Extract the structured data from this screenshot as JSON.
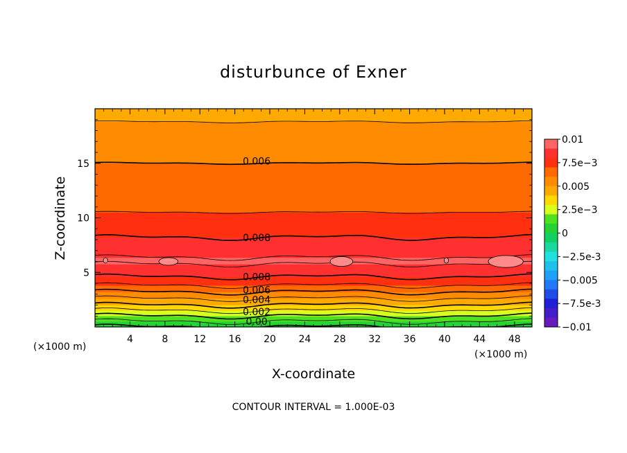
{
  "chart_data": {
    "type": "heatmap",
    "title": "disturbunce of Exner",
    "xlabel": "X-coordinate",
    "ylabel": "Z-coordinate",
    "x_unit_left": "(×1000 m)",
    "x_unit_right": "(×1000 m)",
    "footer": "CONTOUR INTERVAL = 1.000E-03",
    "xlim": [
      0,
      50
    ],
    "ylim": [
      0,
      20
    ],
    "x_ticks": [
      4,
      8,
      12,
      16,
      20,
      24,
      28,
      32,
      36,
      40,
      44,
      48
    ],
    "y_ticks": [
      5,
      10,
      15
    ],
    "contour_interval": 0.001,
    "color_range": [
      -0.01,
      0.01
    ],
    "colorbar": {
      "labels": [
        "0.01",
        "7.5e-3",
        "0.005",
        "2.5e-3",
        "0",
        "-2.5e-3",
        "-0.005",
        "-7.5e-3",
        "-0.01"
      ],
      "values": [
        0.01,
        0.0075,
        0.005,
        0.0025,
        0,
        -0.0025,
        -0.005,
        -0.0075,
        -0.01
      ]
    },
    "contour_labels": [
      {
        "text": "0.006",
        "x": 18.5,
        "y": 15.2
      },
      {
        "text": "0.008",
        "x": 18.5,
        "y": 8.2
      },
      {
        "text": "0.008",
        "x": 18.5,
        "y": 4.6
      },
      {
        "text": "0.006",
        "x": 18.5,
        "y": 3.4
      },
      {
        "text": "0.004",
        "x": 18.5,
        "y": 2.5
      },
      {
        "text": "0.002",
        "x": 18.5,
        "y": 1.4
      },
      {
        "text": "0.00",
        "x": 18.5,
        "y": 0.5
      }
    ],
    "profile": [
      {
        "z": 0,
        "v": 0.0
      },
      {
        "z": 0.5,
        "v": 0.001
      },
      {
        "z": 1.0,
        "v": 0.002
      },
      {
        "z": 1.5,
        "v": 0.003
      },
      {
        "z": 2.0,
        "v": 0.004
      },
      {
        "z": 2.6,
        "v": 0.005
      },
      {
        "z": 3.2,
        "v": 0.006
      },
      {
        "z": 3.8,
        "v": 0.007
      },
      {
        "z": 4.6,
        "v": 0.008
      },
      {
        "z": 6.0,
        "v": 0.0092
      },
      {
        "z": 8.2,
        "v": 0.008
      },
      {
        "z": 10.5,
        "v": 0.007
      },
      {
        "z": 15.0,
        "v": 0.006
      },
      {
        "z": 18.8,
        "v": 0.005
      },
      {
        "z": 20.0,
        "v": 0.0047
      }
    ],
    "highs": [
      {
        "x": 1.2,
        "z": 6.1,
        "rx": 0.25,
        "rz": 0.25
      },
      {
        "x": 8.4,
        "z": 6.0,
        "rx": 1.1,
        "rz": 0.35
      },
      {
        "x": 28.2,
        "z": 6.0,
        "rx": 1.3,
        "rz": 0.45
      },
      {
        "x": 40.2,
        "z": 6.1,
        "rx": 0.25,
        "rz": 0.25
      },
      {
        "x": 47.0,
        "z": 6.0,
        "rx": 2.0,
        "rz": 0.55
      }
    ]
  }
}
